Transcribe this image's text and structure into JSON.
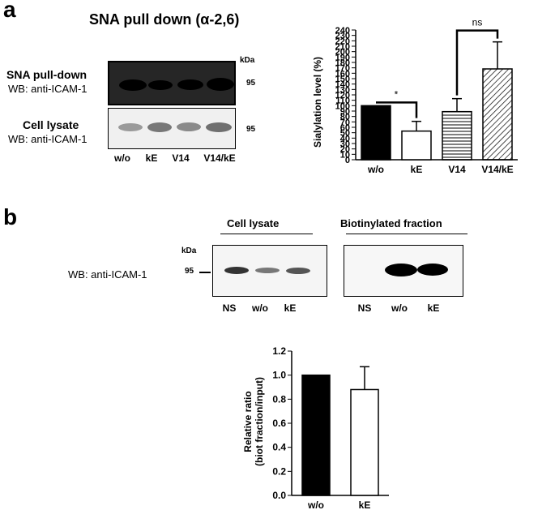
{
  "panel_a": {
    "letter": "a",
    "title": "SNA pull down (α-2,6)",
    "blot_top_label": "SNA pull-down",
    "blot_top_sub": "WB: anti-ICAM-1",
    "blot_bottom_label": "Cell lysate",
    "blot_bottom_sub": "WB: anti-ICAM-1",
    "kda": "kDa",
    "mw_top": "95",
    "mw_bottom": "95",
    "lanes": [
      "w/o",
      "kE",
      "V14",
      "V14/kE"
    ]
  },
  "panel_b": {
    "letter": "b",
    "cell_lysate_label": "Cell lysate",
    "biot_label": "Biotinylated fraction",
    "wb_label": "WB: anti-ICAM-1",
    "kda": "kDa",
    "mw": "95",
    "lanes_left": [
      "NS",
      "w/o",
      "kE"
    ],
    "lanes_right": [
      "NS",
      "w/o",
      "kE"
    ]
  },
  "chart_data": [
    {
      "type": "bar",
      "categories": [
        "w/o",
        "kE",
        "V14",
        "V14/kE"
      ],
      "values": [
        100,
        53,
        89,
        168
      ],
      "errors": [
        0,
        18,
        24,
        50
      ],
      "fills": [
        "solid",
        "open",
        "horizontal-lines",
        "diagonal-lines"
      ],
      "ylabel": "Sialylation level (%)",
      "ylim": [
        0,
        240
      ],
      "yticks": [
        0,
        10,
        20,
        30,
        40,
        50,
        60,
        70,
        80,
        90,
        100,
        110,
        120,
        130,
        140,
        150,
        160,
        170,
        180,
        190,
        200,
        210,
        220,
        230,
        240
      ],
      "annotations": [
        {
          "between": [
            "w/o",
            "kE"
          ],
          "text": "*"
        },
        {
          "between": [
            "V14",
            "V14/kE"
          ],
          "text": "ns"
        }
      ]
    },
    {
      "type": "bar",
      "categories": [
        "w/o",
        "kE"
      ],
      "values": [
        1.0,
        0.88
      ],
      "errors": [
        0,
        0.19
      ],
      "fills": [
        "solid",
        "open"
      ],
      "ylabel_line1": "Relative ratio",
      "ylabel_line2": "(biot fraction/input)",
      "ylim": [
        0,
        1.2
      ],
      "yticks": [
        "0.0",
        "0.2",
        "0.4",
        "0.6",
        "0.8",
        "1.0",
        "1.2"
      ]
    }
  ]
}
